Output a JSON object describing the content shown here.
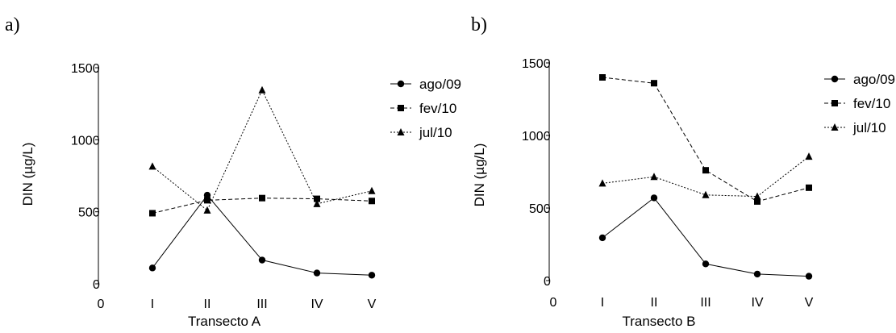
{
  "panel_labels": [
    "a)",
    "b)"
  ],
  "chart_data": [
    {
      "type": "line",
      "panel": "a)",
      "xlabel": "Transecto A",
      "ylabel": "DIN (µg/L)",
      "x_origin_label": "0",
      "categories": [
        "I",
        "II",
        "III",
        "IV",
        "V"
      ],
      "ylim": [
        0,
        1500
      ],
      "yticks": [
        "0",
        "500",
        "1000",
        "1500"
      ],
      "legend_position": "right",
      "series": [
        {
          "name": "ago/09",
          "marker": "circle",
          "dash": "solid",
          "values": [
            110,
            615,
            165,
            75,
            60
          ]
        },
        {
          "name": "fev/10",
          "marker": "square",
          "dash": "dashed",
          "values": [
            490,
            580,
            595,
            590,
            575
          ]
        },
        {
          "name": "jul/10",
          "marker": "triangle",
          "dash": "dotted",
          "values": [
            815,
            510,
            1345,
            555,
            645
          ]
        }
      ]
    },
    {
      "type": "line",
      "panel": "b)",
      "xlabel": "Transecto B",
      "ylabel": "DIN (µg/L)",
      "x_origin_label": "0",
      "categories": [
        "I",
        "II",
        "III",
        "IV",
        "V"
      ],
      "ylim": [
        0,
        1500
      ],
      "yticks": [
        "0",
        "500",
        "1000",
        "1500"
      ],
      "legend_position": "right",
      "series": [
        {
          "name": "ago/09",
          "marker": "circle",
          "dash": "solid",
          "values": [
            295,
            570,
            115,
            45,
            30
          ]
        },
        {
          "name": "fev/10",
          "marker": "square",
          "dash": "dashed",
          "values": [
            1400,
            1360,
            760,
            545,
            640
          ]
        },
        {
          "name": "jul/10",
          "marker": "triangle",
          "dash": "dotted",
          "values": [
            670,
            715,
            590,
            580,
            855
          ]
        }
      ]
    }
  ]
}
